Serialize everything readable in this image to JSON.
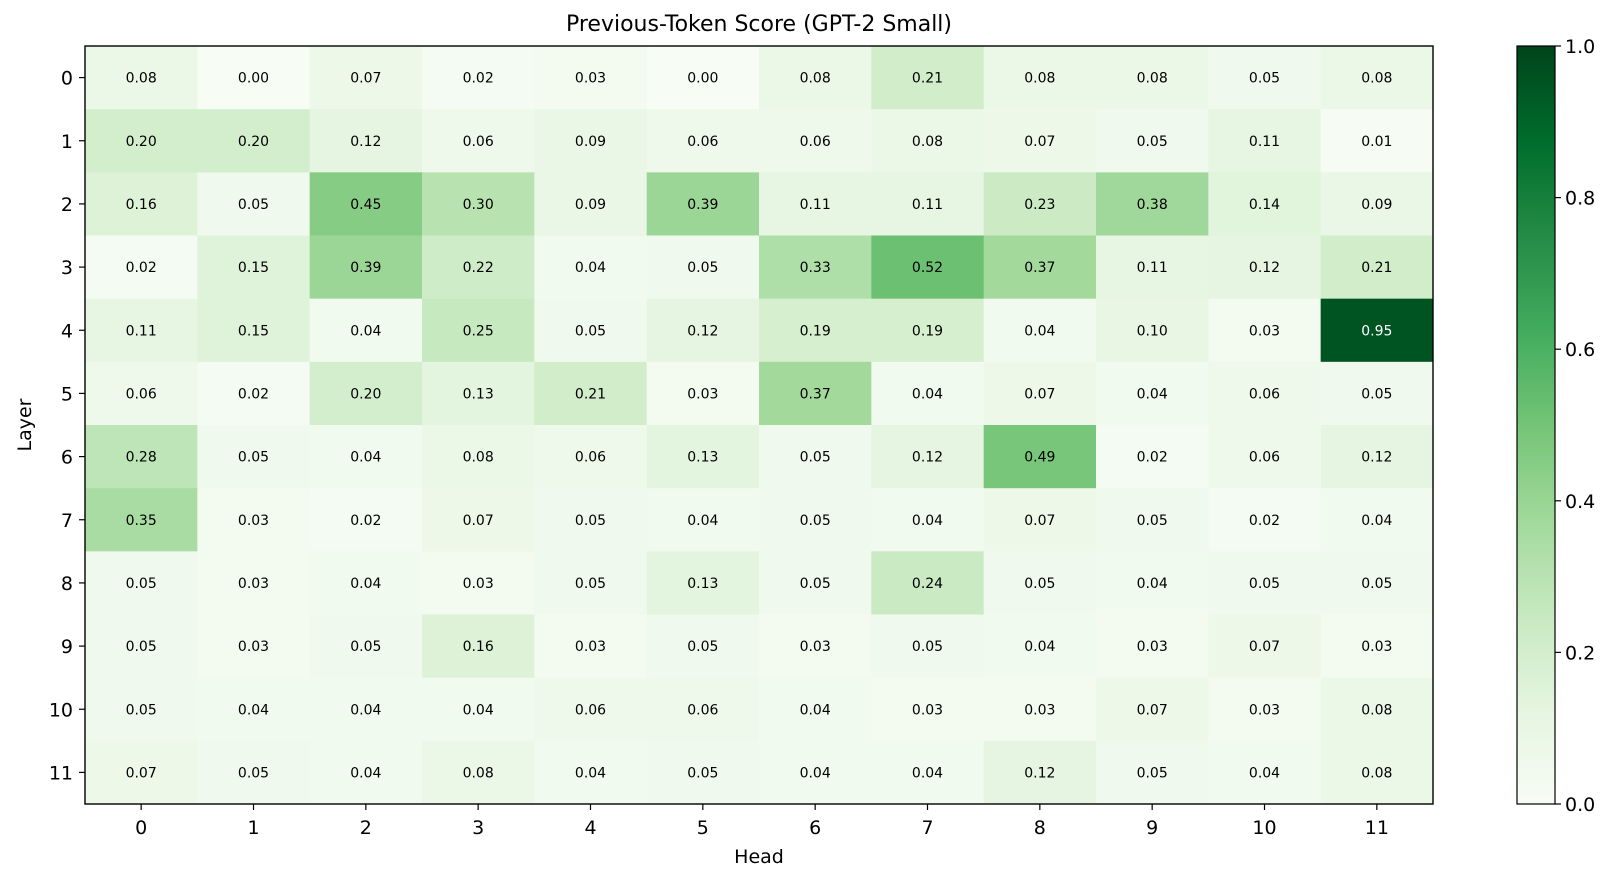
{
  "chart_data": {
    "type": "heatmap",
    "title": "Previous-Token Score (GPT-2 Small)",
    "xlabel": "Head",
    "ylabel": "Layer",
    "x_categories": [
      "0",
      "1",
      "2",
      "3",
      "4",
      "5",
      "6",
      "7",
      "8",
      "9",
      "10",
      "11"
    ],
    "y_categories": [
      "0",
      "1",
      "2",
      "3",
      "4",
      "5",
      "6",
      "7",
      "8",
      "9",
      "10",
      "11"
    ],
    "values": [
      [
        0.08,
        0.0,
        0.07,
        0.02,
        0.03,
        0.0,
        0.08,
        0.21,
        0.08,
        0.08,
        0.05,
        0.08
      ],
      [
        0.2,
        0.2,
        0.12,
        0.06,
        0.09,
        0.06,
        0.06,
        0.08,
        0.07,
        0.05,
        0.11,
        0.01
      ],
      [
        0.16,
        0.05,
        0.45,
        0.3,
        0.09,
        0.39,
        0.11,
        0.11,
        0.23,
        0.38,
        0.14,
        0.09
      ],
      [
        0.02,
        0.15,
        0.39,
        0.22,
        0.04,
        0.05,
        0.33,
        0.52,
        0.37,
        0.11,
        0.12,
        0.21
      ],
      [
        0.11,
        0.15,
        0.04,
        0.25,
        0.05,
        0.12,
        0.19,
        0.19,
        0.04,
        0.1,
        0.03,
        0.95
      ],
      [
        0.06,
        0.02,
        0.2,
        0.13,
        0.21,
        0.03,
        0.37,
        0.04,
        0.07,
        0.04,
        0.06,
        0.05
      ],
      [
        0.28,
        0.05,
        0.04,
        0.08,
        0.06,
        0.13,
        0.05,
        0.12,
        0.49,
        0.02,
        0.06,
        0.12
      ],
      [
        0.35,
        0.03,
        0.02,
        0.07,
        0.05,
        0.04,
        0.05,
        0.04,
        0.07,
        0.05,
        0.02,
        0.04
      ],
      [
        0.05,
        0.03,
        0.04,
        0.03,
        0.05,
        0.13,
        0.05,
        0.24,
        0.05,
        0.04,
        0.05,
        0.05
      ],
      [
        0.05,
        0.03,
        0.05,
        0.16,
        0.03,
        0.05,
        0.03,
        0.05,
        0.04,
        0.03,
        0.07,
        0.03
      ],
      [
        0.05,
        0.04,
        0.04,
        0.04,
        0.06,
        0.06,
        0.04,
        0.03,
        0.03,
        0.07,
        0.03,
        0.08
      ],
      [
        0.07,
        0.05,
        0.04,
        0.08,
        0.04,
        0.05,
        0.04,
        0.04,
        0.12,
        0.05,
        0.04,
        0.08
      ]
    ],
    "value_range": [
      0.0,
      1.0
    ],
    "colormap": "Greens",
    "colorbar_ticks": [
      "0.0",
      "0.2",
      "0.4",
      "0.6",
      "0.8",
      "1.0"
    ],
    "colors": {
      "low": "#f7fcf5",
      "mid": "#74c476",
      "high": "#00441b"
    },
    "grid": false
  }
}
